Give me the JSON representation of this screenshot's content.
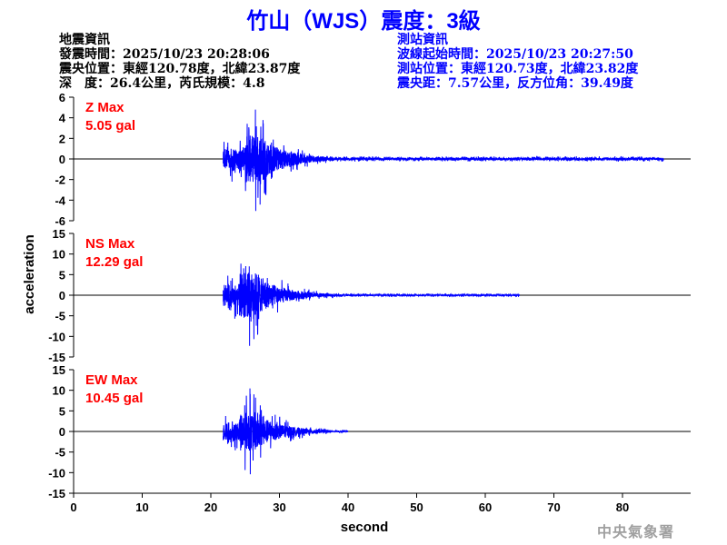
{
  "title": "竹山（WJS）震度：3級",
  "earthquake_info": {
    "heading": "地震資訊",
    "origin_time": "發震時間：2025/10/23 20:28:06",
    "epicenter": "震央位置：東經120.78度，北緯23.87度",
    "depth_magnitude": "深　度：26.4公里，芮氏規模：4.8"
  },
  "station_info": {
    "heading": "測站資訊",
    "start_time": "波線起始時間：2025/10/23 20:27:50",
    "location": "測站位置：東經120.73度，北緯23.82度",
    "distance": "震央距：7.57公里，反方位角：39.49度"
  },
  "watermark": "中央氣象署",
  "colors": {
    "trace": "#0000ff",
    "max_label": "#ff0000",
    "axis": "#000000",
    "title": "#0000ff"
  },
  "chart_data": {
    "type": "line",
    "xlabel": "second",
    "ylabel": "acceleration",
    "xlim": [
      0,
      90
    ],
    "xticks": [
      0,
      10,
      20,
      30,
      40,
      50,
      60,
      70,
      80
    ],
    "grid": false,
    "panels": [
      {
        "component": "Z",
        "max_label": "Z Max",
        "max_value": "5.05 gal",
        "ylim": [
          -6,
          6
        ],
        "yticks": [
          6,
          4,
          2,
          0,
          -2,
          -4,
          -6
        ],
        "onset_s": 21.8,
        "peak_s": 26.5,
        "peak_pos": 4.8,
        "peak_neg": -5.05,
        "tail_end_s": 86,
        "tail_amp": 0.25
      },
      {
        "component": "NS",
        "max_label": "NS Max",
        "max_value": "12.29 gal",
        "ylim": [
          -15,
          15
        ],
        "yticks": [
          15,
          10,
          5,
          0,
          -5,
          -10,
          -15
        ],
        "onset_s": 21.8,
        "peak_s": 25.6,
        "peak_pos": 7.0,
        "peak_neg": -12.29,
        "tail_end_s": 65,
        "tail_amp": 0.4
      },
      {
        "component": "EW",
        "max_label": "EW Max",
        "max_value": "10.45 gal",
        "ylim": [
          -15,
          15
        ],
        "yticks": [
          15,
          10,
          5,
          0,
          -5,
          -10,
          -15
        ],
        "onset_s": 21.8,
        "peak_s": 25.7,
        "peak_pos": 10.45,
        "peak_neg": -10.4,
        "tail_end_s": 40,
        "tail_amp": 0.4
      }
    ]
  }
}
